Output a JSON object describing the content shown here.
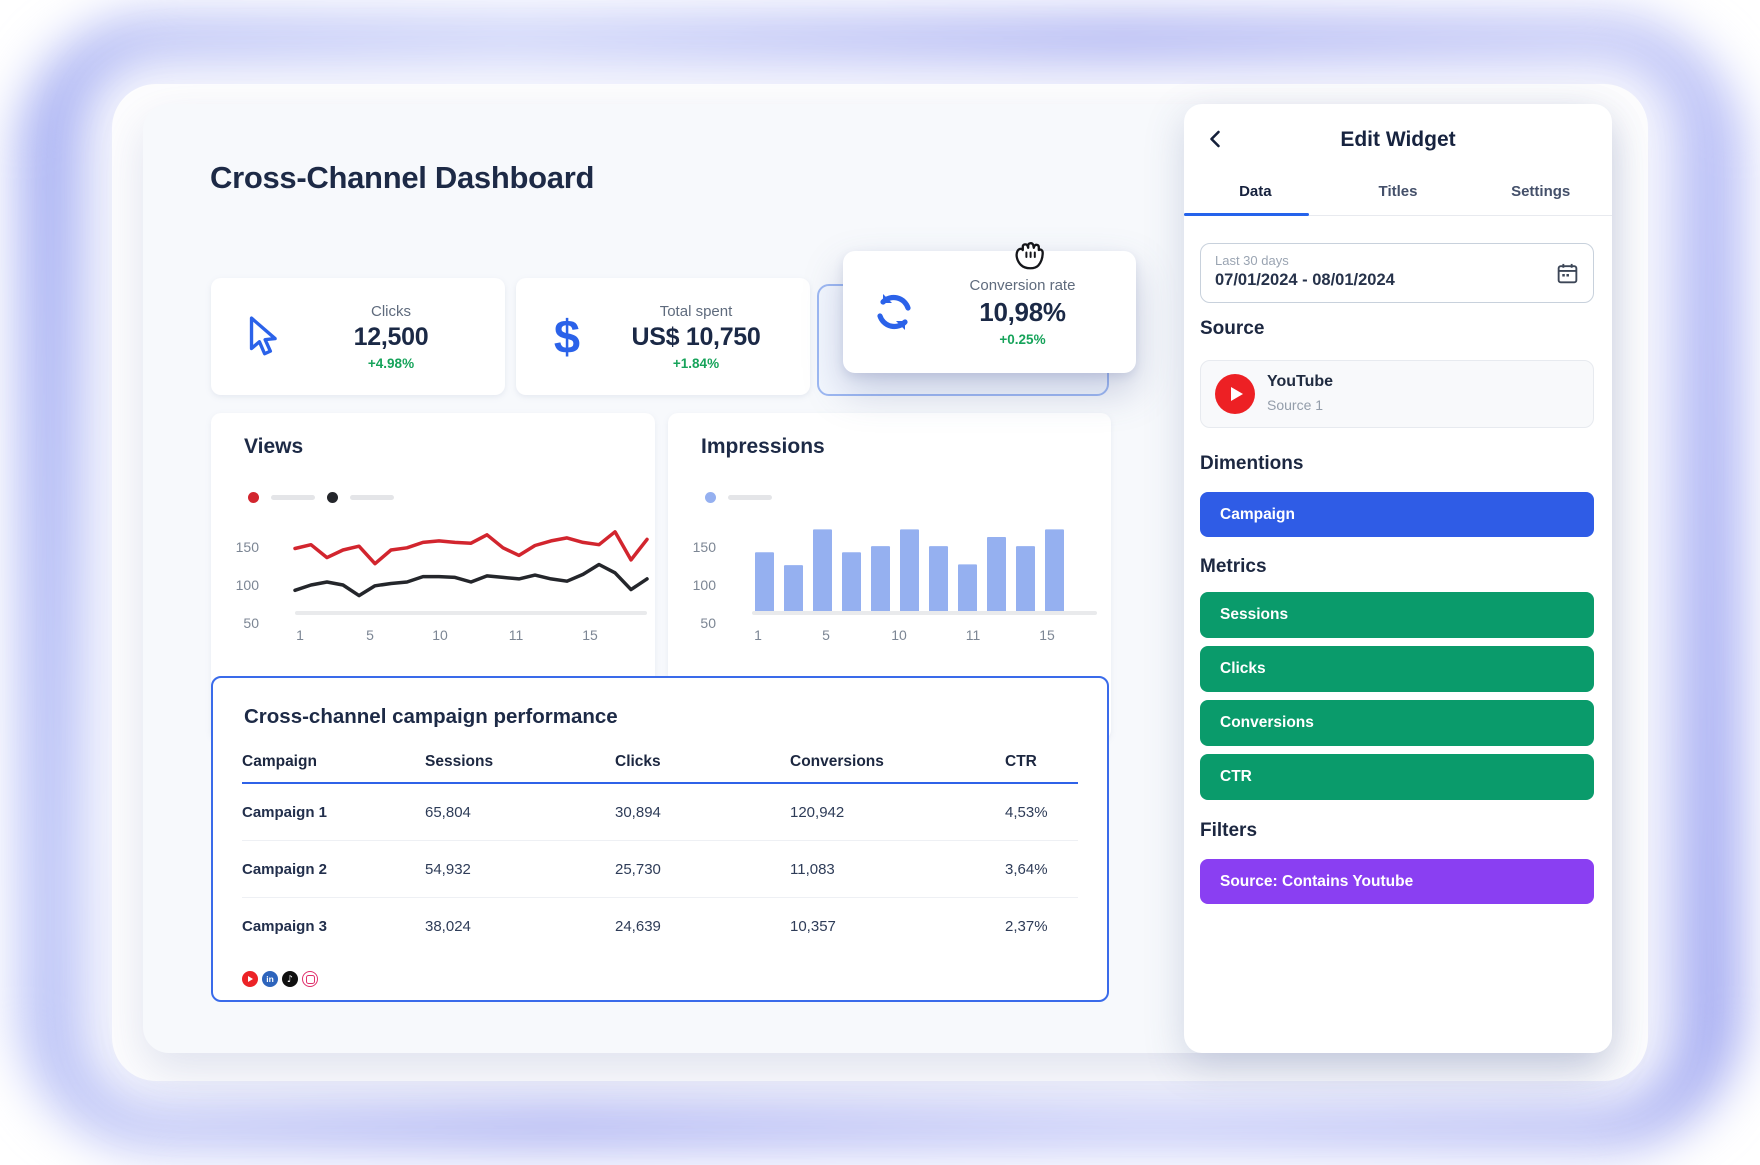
{
  "app": {
    "dashboard_title": "Cross-Channel Dashboard",
    "kpi_cards": [
      {
        "icon": "cursor-arrow-icon",
        "label": "Clicks",
        "value": "12,500",
        "delta": "+4.98%"
      },
      {
        "icon": "dollar-icon",
        "label": "Total spent",
        "value": "US$ 10,750",
        "delta": "+1.84%"
      },
      {
        "icon": "sync-arrows-icon",
        "label": "Conversion rate",
        "value": "10,98%",
        "delta": "+0.25%",
        "state": "dragging"
      }
    ],
    "drag_cursor": "grabbing-hand-icon"
  },
  "chart_data": [
    {
      "type": "line",
      "title": "Views",
      "x_start": 1,
      "series": [
        {
          "name": "series-red",
          "color": "#d2252e",
          "values": [
            148,
            153,
            136,
            146,
            151,
            128,
            146,
            149,
            156,
            158,
            156,
            155,
            166,
            149,
            139,
            152,
            158,
            162,
            156,
            153,
            170,
            133,
            160
          ]
        },
        {
          "name": "series-black",
          "color": "#24262b",
          "values": [
            93,
            100,
            104,
            100,
            86,
            99,
            102,
            104,
            111,
            111,
            110,
            104,
            112,
            110,
            108,
            113,
            108,
            105,
            114,
            127,
            116,
            94,
            108
          ]
        }
      ],
      "ylim": [
        50,
        190
      ],
      "yticks": [
        "150",
        "100",
        "50"
      ],
      "xticks": [
        "1",
        "5",
        "10",
        "11",
        "15"
      ],
      "legend_position": "top",
      "grid": false
    },
    {
      "type": "bar",
      "title": "Impressions",
      "values": [
        142,
        125,
        172,
        142,
        150,
        172,
        150,
        126,
        162,
        150,
        172
      ],
      "bar_color": "#95b0f0",
      "ylim": [
        50,
        190
      ],
      "yticks": [
        "150",
        "100",
        "50"
      ],
      "xticks": [
        "1",
        "5",
        "10",
        "11",
        "15"
      ],
      "legend_position": "top",
      "grid": false
    }
  ],
  "table": {
    "title": "Cross-channel campaign performance",
    "columns": [
      "Campaign",
      "Sessions",
      "Clicks",
      "Conversions",
      "CTR"
    ],
    "rows": [
      [
        "Campaign 1",
        "65,804",
        "30,894",
        "120,942",
        "4,53%"
      ],
      [
        "Campaign 2",
        "54,932",
        "25,730",
        "11,083",
        "3,64%"
      ],
      [
        "Campaign 3",
        "38,024",
        "24,639",
        "10,357",
        "2,37%"
      ]
    ],
    "footer_icons": [
      "youtube-icon",
      "linkedin-icon",
      "tiktok-icon",
      "instagram-icon"
    ],
    "border_color": "#2f62e8"
  },
  "panel": {
    "back_icon": "chevron-left-icon",
    "title": "Edit Widget",
    "tabs": [
      {
        "label": "Data",
        "active": true
      },
      {
        "label": "Titles",
        "active": false
      },
      {
        "label": "Settings",
        "active": false
      }
    ],
    "date_picker": {
      "label": "Last 30 days",
      "value": "07/01/2024 - 08/01/2024",
      "icon": "calendar-icon"
    },
    "source_section": {
      "heading": "Source",
      "item": {
        "icon": "youtube-icon",
        "name": "YouTube",
        "subtitle": "Source 1"
      }
    },
    "dimensions_section": {
      "heading": "Dimentions",
      "items": [
        {
          "label": "Campaign",
          "color": "#2f5ce6"
        }
      ]
    },
    "metrics_section": {
      "heading": "Metrics",
      "items": [
        {
          "label": "Sessions",
          "color": "#0a9b6b"
        },
        {
          "label": "Clicks",
          "color": "#0a9b6b"
        },
        {
          "label": "Conversions",
          "color": "#0a9b6b"
        },
        {
          "label": "CTR",
          "color": "#0a9b6b"
        }
      ]
    },
    "filters_section": {
      "heading": "Filters",
      "items": [
        {
          "label": "Source: Contains Youtube",
          "color": "#8a3ff2"
        }
      ]
    }
  },
  "colors": {
    "accent_blue": "#2b62e9",
    "positive_green": "#16a35a",
    "board_bg": "#f7f9fc"
  }
}
